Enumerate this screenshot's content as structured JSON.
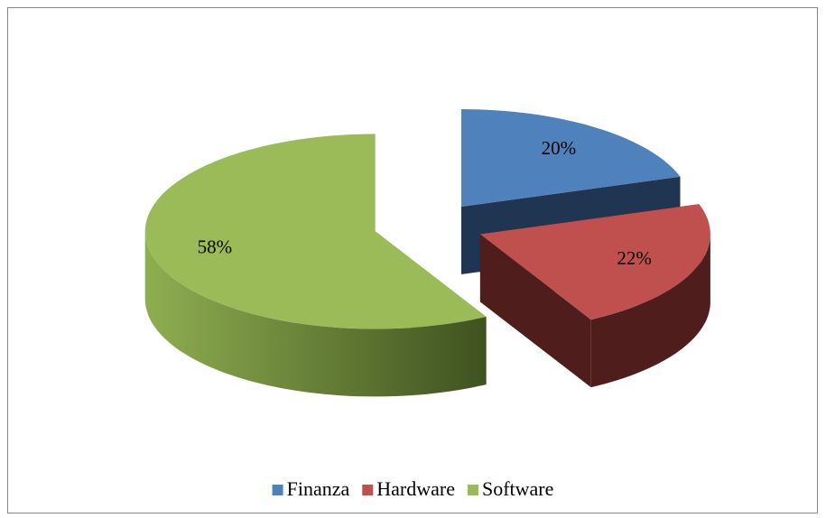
{
  "chart_data": {
    "type": "pie",
    "three_d": true,
    "exploded": true,
    "categories": [
      "Finanza",
      "Hardware",
      "Software"
    ],
    "values": [
      20,
      22,
      58
    ],
    "value_labels": [
      "20%",
      "22%",
      "58%"
    ],
    "colors": [
      "#4f81bd",
      "#c0504d",
      "#9bbb59"
    ],
    "side_colors": [
      "#1f3552",
      "#4f1d1c",
      "#4b5e26"
    ],
    "legend": "bottom"
  }
}
